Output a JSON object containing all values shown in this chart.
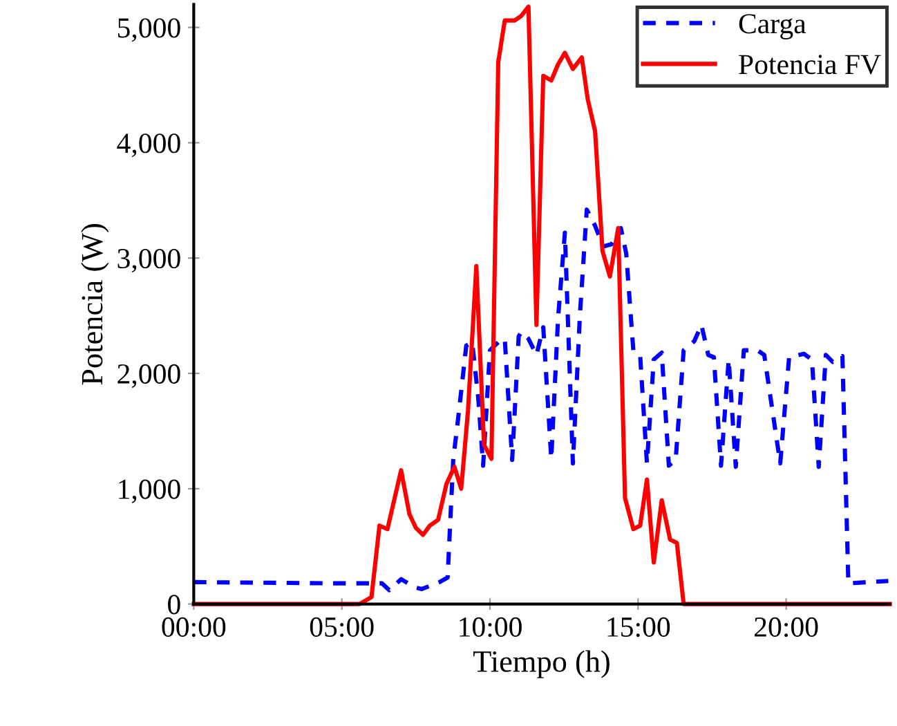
{
  "chart_data": {
    "type": "line",
    "xlabel": "Tiempo (h)",
    "ylabel": "Potencia (W)",
    "xlim": [
      0,
      23.5
    ],
    "xticks": [
      {
        "value": 0,
        "label": "00:00"
      },
      {
        "value": 5,
        "label": "05:00"
      },
      {
        "value": 10,
        "label": "10:00"
      },
      {
        "value": 15,
        "label": "15:00"
      },
      {
        "value": 20,
        "label": "20:00"
      }
    ],
    "ylim": [
      0,
      5200
    ],
    "yticks": [
      {
        "value": 0,
        "label": "0"
      },
      {
        "value": 1000,
        "label": "1,000"
      },
      {
        "value": 2000,
        "label": "2,000"
      },
      {
        "value": 3000,
        "label": "3,000"
      },
      {
        "value": 4000,
        "label": "4,000"
      },
      {
        "value": 5000,
        "label": "5,000"
      }
    ],
    "grid": false,
    "legend": "top right",
    "series": [
      {
        "name": "Carga",
        "color": "#0000ff",
        "line_style": "dashed",
        "x": [
          0,
          4.6,
          6.08,
          6.35,
          6.6,
          7.0,
          7.46,
          7.7,
          8.3,
          8.57,
          8.76,
          8.94,
          9.2,
          9.4,
          9.6,
          9.77,
          10.0,
          10.32,
          10.5,
          10.75,
          10.97,
          11.06,
          11.3,
          11.57,
          11.8,
          12.07,
          12.3,
          12.53,
          12.8,
          13.04,
          13.27,
          13.55,
          13.82,
          14.1,
          14.42,
          14.6,
          14.84,
          15.07,
          15.3,
          15.53,
          15.8,
          16.04,
          16.27,
          16.54,
          16.9,
          17.14,
          17.37,
          17.56,
          17.8,
          18.06,
          18.3,
          18.57,
          19.03,
          19.26,
          19.8,
          20.1,
          20.6,
          20.87,
          21.1,
          21.34,
          21.57,
          21.9,
          22.1,
          23.45
        ],
        "values": [
          190,
          180,
          180,
          180,
          120,
          215,
          145,
          130,
          190,
          230,
          1250,
          1640,
          2240,
          2270,
          1800,
          1200,
          2200,
          2280,
          2300,
          1250,
          2320,
          2360,
          2300,
          2160,
          2400,
          1260,
          2480,
          3220,
          1220,
          2520,
          3420,
          3280,
          3100,
          3120,
          3260,
          3040,
          2200,
          2160,
          1220,
          2120,
          2180,
          1200,
          1250,
          2200,
          2280,
          2420,
          2160,
          2140,
          1200,
          2120,
          1190,
          2200,
          2200,
          2160,
          1220,
          2140,
          2170,
          2120,
          1190,
          2160,
          2100,
          2150,
          180,
          200
        ]
      },
      {
        "name": "Potencia FV",
        "color": "#ff0000",
        "line_style": "solid",
        "x": [
          0,
          5.6,
          6.0,
          6.27,
          6.54,
          7.0,
          7.28,
          7.5,
          7.74,
          7.97,
          8.25,
          8.53,
          8.8,
          9.03,
          9.26,
          9.54,
          9.8,
          10.05,
          10.28,
          10.5,
          10.83,
          11.06,
          11.3,
          11.57,
          11.8,
          12.07,
          12.3,
          12.53,
          12.8,
          13.1,
          13.3,
          13.55,
          13.8,
          14.05,
          14.33,
          14.56,
          14.84,
          15.07,
          15.3,
          15.53,
          15.8,
          16.08,
          16.31,
          16.54,
          23.5
        ],
        "values": [
          0,
          0,
          60,
          680,
          650,
          1160,
          780,
          660,
          600,
          680,
          730,
          1040,
          1190,
          1000,
          1680,
          2930,
          1380,
          1260,
          4700,
          5060,
          5060,
          5100,
          5180,
          2420,
          4580,
          4540,
          4680,
          4780,
          4640,
          4740,
          4380,
          4100,
          3060,
          2840,
          3260,
          920,
          650,
          680,
          1080,
          360,
          900,
          560,
          530,
          0,
          0
        ]
      }
    ]
  }
}
